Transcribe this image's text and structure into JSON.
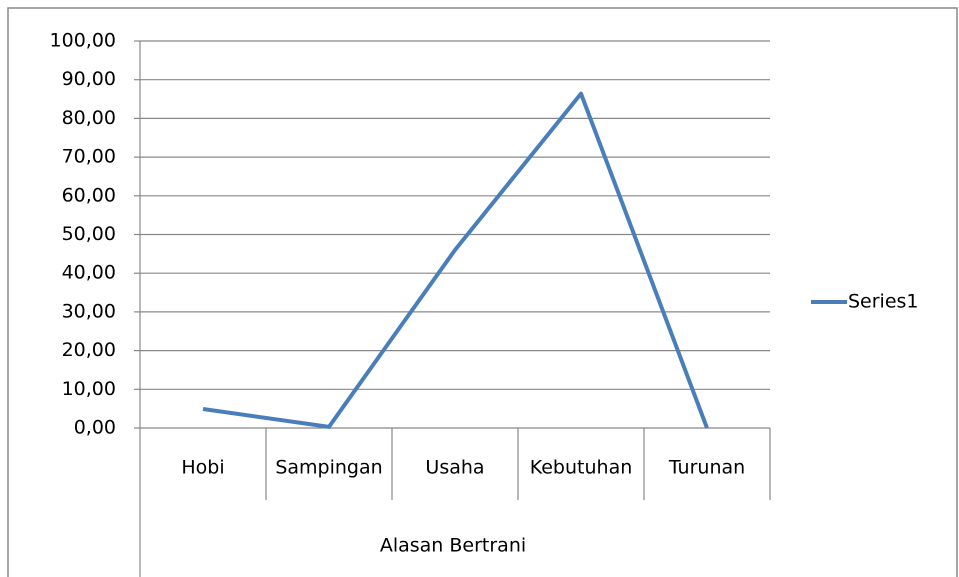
{
  "chart_data": {
    "type": "line",
    "x_label": "Alasan Bertrani",
    "categories": [
      "Hobi",
      "Sampingan",
      "Usaha",
      "Kebutuhan",
      "Turunan"
    ],
    "series": [
      {
        "name": "Series1",
        "color": "#4a7ebb",
        "values": [
          4.9,
          0.3,
          46,
          86.4,
          0
        ]
      }
    ],
    "ylim": [
      0,
      100
    ],
    "yticks": [
      {
        "value": 0,
        "label": "0,00"
      },
      {
        "value": 10,
        "label": "10,00"
      },
      {
        "value": 20,
        "label": "20,00"
      },
      {
        "value": 30,
        "label": "30,00"
      },
      {
        "value": 40,
        "label": "40,00"
      },
      {
        "value": 50,
        "label": "50,00"
      },
      {
        "value": 60,
        "label": "60,00"
      },
      {
        "value": 70,
        "label": "70,00"
      },
      {
        "value": 80,
        "label": "80,00"
      },
      {
        "value": 90,
        "label": "90,00"
      },
      {
        "value": 100,
        "label": "100,00"
      }
    ],
    "grid": true,
    "legend": "right"
  }
}
